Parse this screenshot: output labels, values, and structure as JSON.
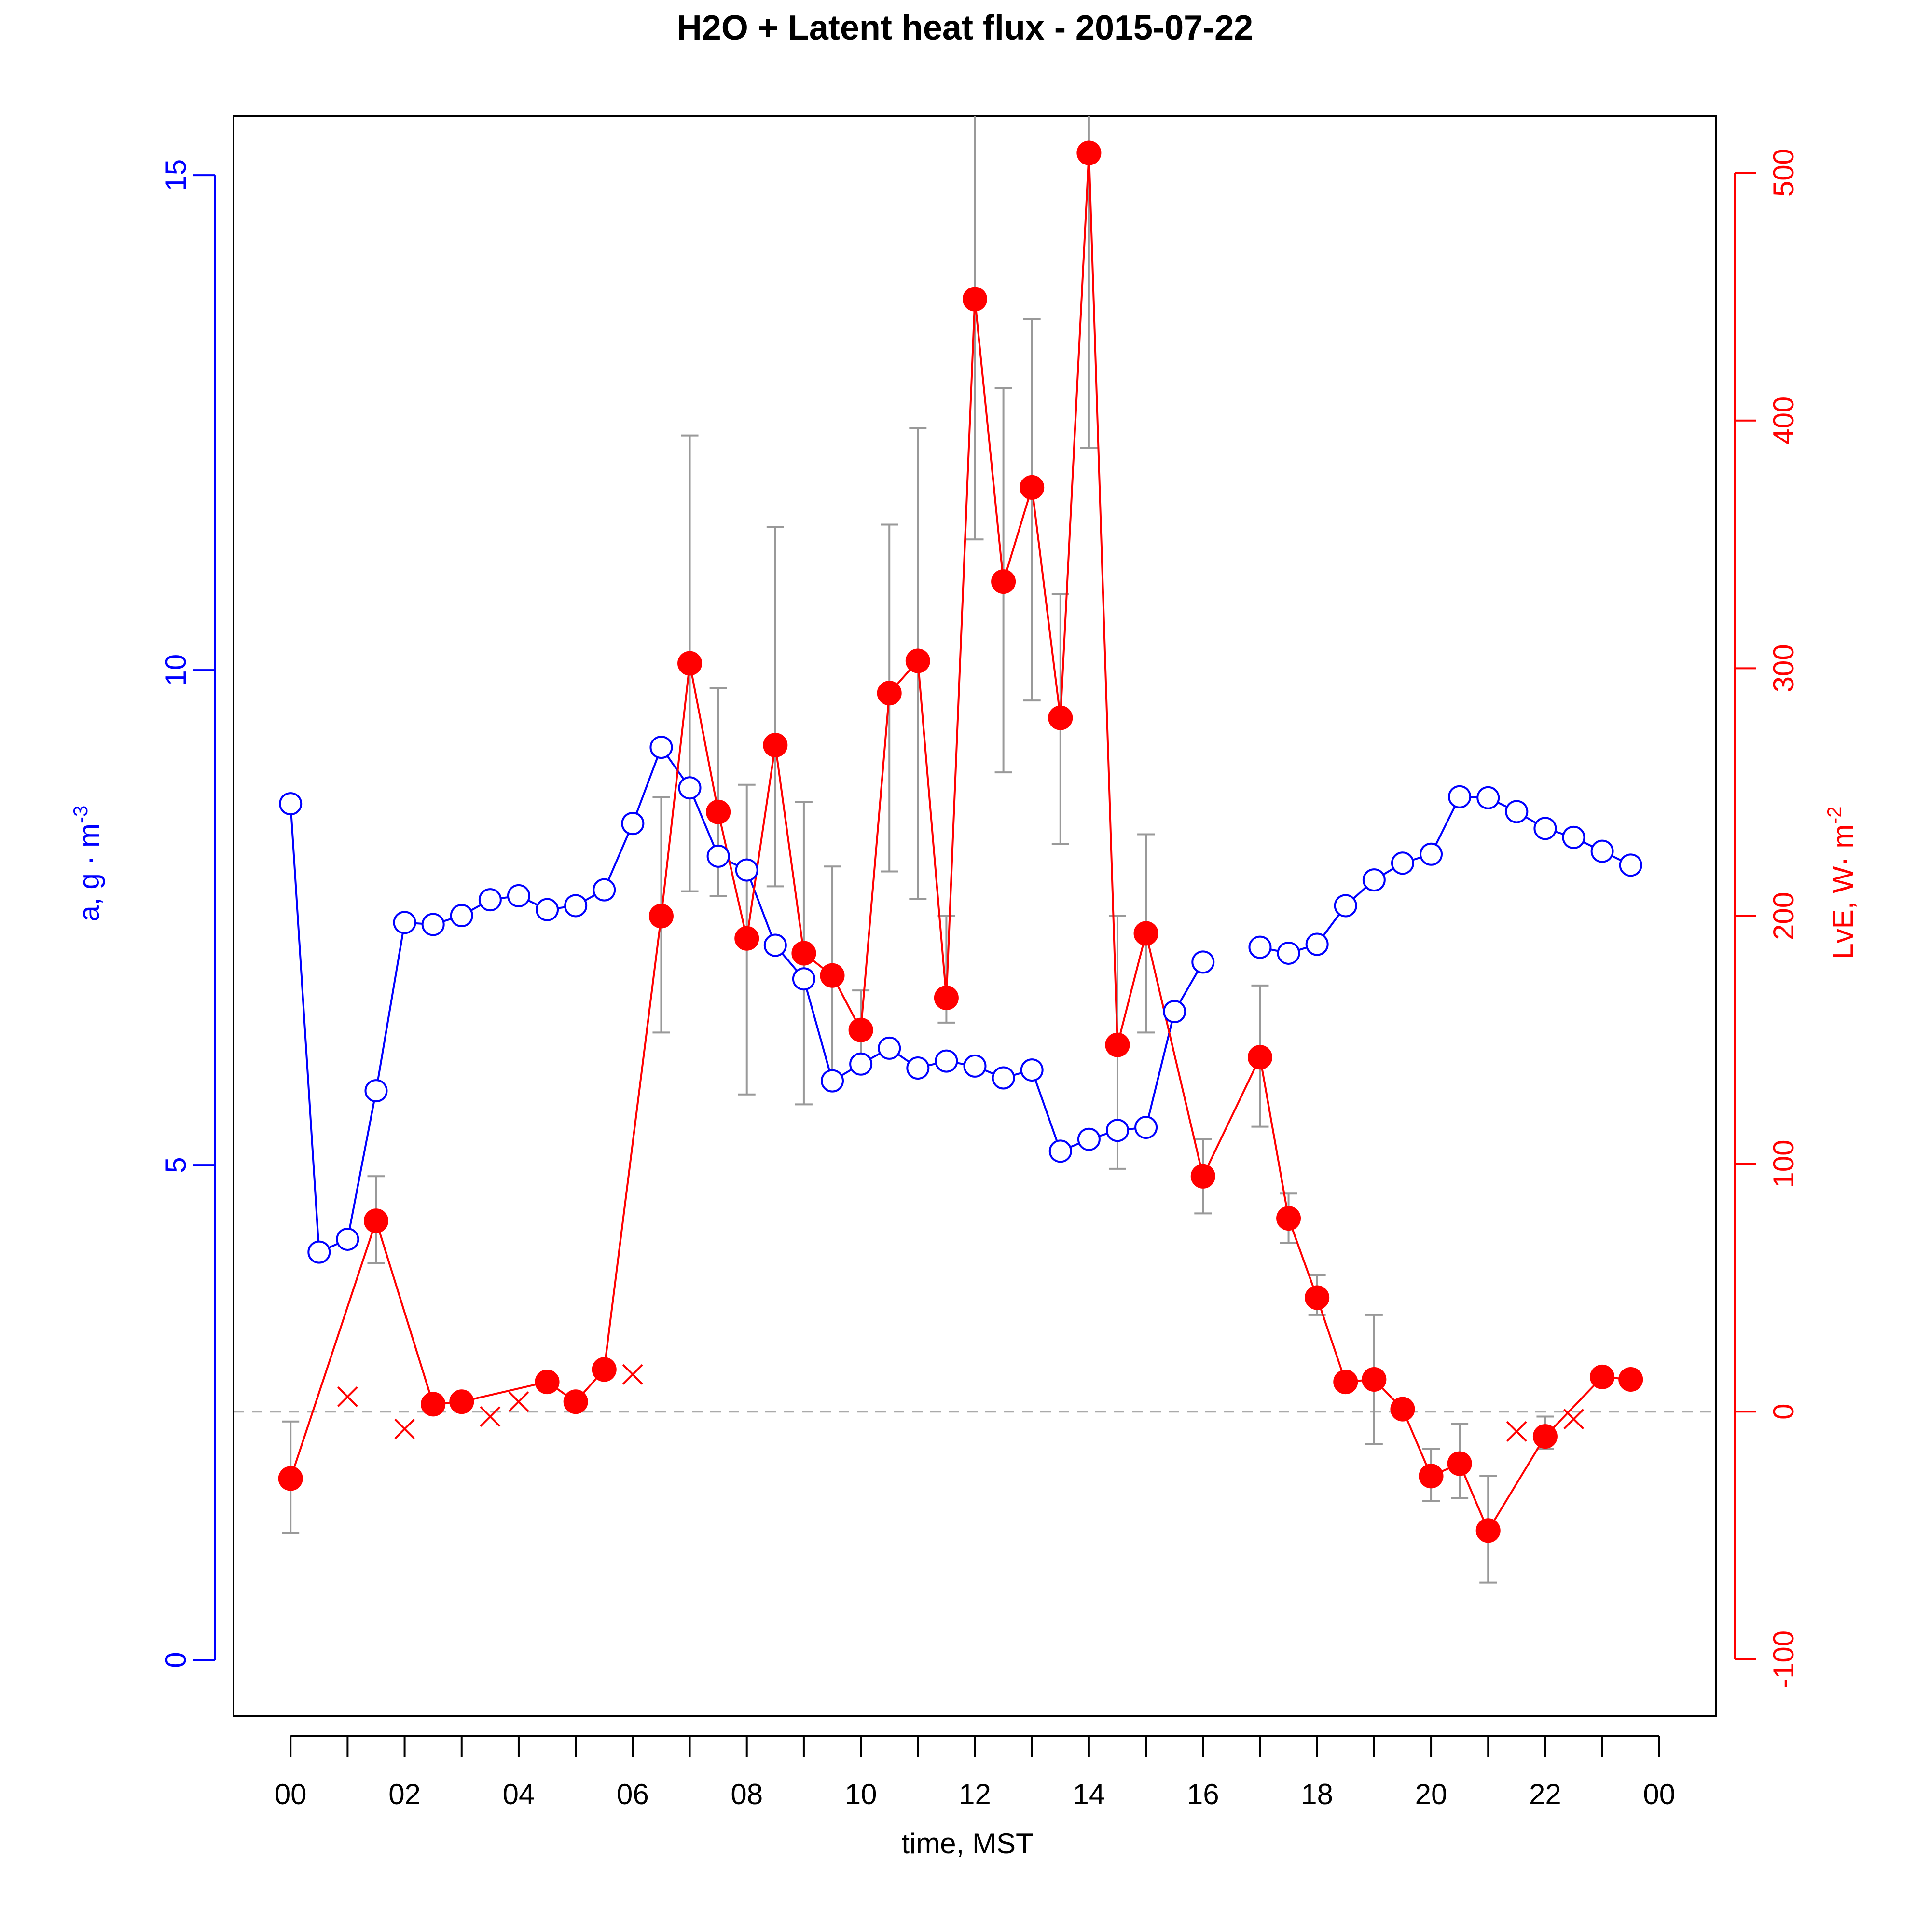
{
  "chart_data": {
    "type": "line",
    "title": "H2O + Latent heat flux -  2015-07-22",
    "xlabel": "time, MST",
    "ylabel_left": "a, g · m",
    "ylabel_left_exp": "-3",
    "ylabel_right": "LvE, W· m",
    "ylabel_right_exp": "-2",
    "xlim": [
      -1,
      25
    ],
    "ylim_left": [
      -0.57,
      15.6
    ],
    "ylim_right": [
      -123,
      523
    ],
    "x_ticks": [
      0,
      1,
      2,
      3,
      4,
      5,
      6,
      7,
      8,
      9,
      10,
      11,
      12,
      13,
      14,
      15,
      16,
      17,
      18,
      19,
      20,
      21,
      22,
      23,
      24
    ],
    "x_tick_labels": [
      {
        "x": 0,
        "label": "00"
      },
      {
        "x": 2,
        "label": "02"
      },
      {
        "x": 4,
        "label": "04"
      },
      {
        "x": 6,
        "label": "06"
      },
      {
        "x": 8,
        "label": "08"
      },
      {
        "x": 10,
        "label": "10"
      },
      {
        "x": 12,
        "label": "12"
      },
      {
        "x": 14,
        "label": "14"
      },
      {
        "x": 16,
        "label": "16"
      },
      {
        "x": 18,
        "label": "18"
      },
      {
        "x": 20,
        "label": "20"
      },
      {
        "x": 22,
        "label": "22"
      },
      {
        "x": 24,
        "label": "00"
      }
    ],
    "y_left_ticks": [
      0,
      5,
      10,
      15
    ],
    "y_right_ticks": [
      -100,
      0,
      100,
      200,
      300,
      400,
      500
    ],
    "reference_line": {
      "axis": "right",
      "y": 0
    },
    "colors": {
      "h2o": "#0000ff",
      "flux": "#ff0000",
      "error_bar": "#999999",
      "reference": "#aaaaaa"
    },
    "series": [
      {
        "axis": "left",
        "marker": "open-circle",
        "x": [
          0,
          0.5,
          1,
          1.5,
          2,
          2.5,
          3,
          3.5,
          4,
          4.5,
          5,
          5.5,
          6,
          6.5,
          7,
          7.5,
          8,
          8.5,
          9,
          9.5,
          10,
          10.5,
          11,
          11.5,
          12,
          12.5,
          13,
          13.5,
          14,
          14.5,
          15,
          15.5,
          16,
          16.5,
          17,
          17.5,
          18,
          18.5,
          19,
          19.5,
          20,
          20.5,
          21,
          21.5,
          22,
          22.5,
          23,
          23.5
        ],
        "y": [
          8.65,
          4.12,
          4.25,
          5.75,
          7.45,
          7.43,
          7.52,
          7.68,
          7.72,
          7.58,
          7.62,
          7.78,
          8.45,
          9.22,
          8.81,
          8.12,
          7.98,
          7.22,
          6.88,
          5.85,
          6.02,
          6.18,
          5.98,
          6.05,
          6.0,
          5.88,
          5.96,
          5.14,
          5.26,
          5.35,
          5.38,
          6.55,
          7.05,
          null,
          7.2,
          7.14,
          7.23,
          7.62,
          7.88,
          8.05,
          8.14,
          8.72,
          8.71,
          8.57,
          8.4,
          8.31,
          8.17,
          8.03
        ]
      },
      {
        "axis": "right",
        "marker": "filled-circle",
        "x": [
          0,
          1.5,
          2.5,
          3,
          4.5,
          5,
          5.5,
          6.5,
          7,
          7.5,
          8,
          8.5,
          9,
          9.5,
          10,
          10.5,
          11,
          11.5,
          12,
          12.5,
          13,
          13.5,
          14,
          14.5,
          15,
          16,
          17,
          17.5,
          18,
          18.5,
          19,
          19.5,
          20,
          20.5,
          21,
          22,
          23,
          23.5
        ],
        "y": [
          -27,
          77,
          3,
          4,
          12,
          4,
          17,
          200,
          302,
          242,
          191,
          269,
          185,
          176,
          154,
          290,
          303,
          167,
          449,
          335,
          373,
          280,
          508,
          148,
          193,
          95,
          143,
          78,
          46,
          12,
          13,
          1,
          -26,
          -21,
          -48,
          -10,
          14,
          13
        ],
        "error_bars": [
          [
            -49,
            -4
          ],
          [
            60,
            95
          ],
          null,
          null,
          null,
          null,
          null,
          [
            153,
            248
          ],
          [
            210,
            394
          ],
          [
            208,
            292
          ],
          [
            128,
            253
          ],
          [
            212,
            357
          ],
          [
            124,
            246
          ],
          [
            136,
            220
          ],
          [
            138,
            170
          ],
          [
            218,
            358
          ],
          [
            207,
            397
          ],
          [
            157,
            200
          ],
          [
            352,
            535
          ],
          [
            258,
            413
          ],
          [
            287,
            441
          ],
          [
            229,
            330
          ],
          [
            389,
            540
          ],
          [
            98,
            200
          ],
          [
            153,
            233
          ],
          [
            80,
            110
          ],
          [
            115,
            172
          ],
          [
            68,
            88
          ],
          [
            39,
            55
          ],
          [
            9,
            15
          ],
          [
            -13,
            39
          ],
          null,
          [
            -36,
            -15
          ],
          [
            -35,
            -5
          ],
          [
            -69,
            -26
          ],
          [
            -15,
            -2
          ],
          [
            11,
            17
          ],
          null
        ]
      },
      {
        "axis": "right",
        "marker": "cross",
        "x": [
          1,
          2,
          3.5,
          4,
          6,
          21.5,
          22.5
        ],
        "y": [
          6,
          -7,
          -2,
          4,
          15,
          -8,
          -3
        ]
      }
    ]
  }
}
